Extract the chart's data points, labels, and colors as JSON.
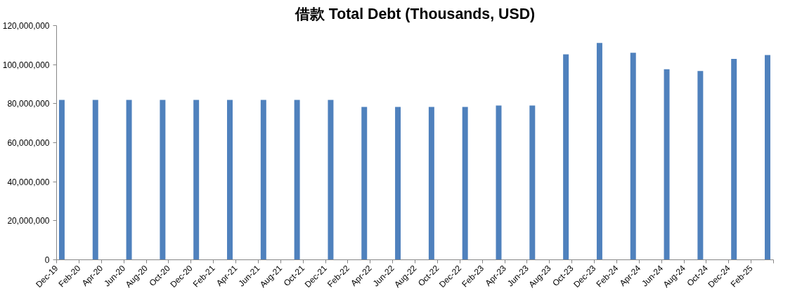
{
  "chart_data": {
    "type": "bar",
    "title": "借款 Total Debt (Thousands, USD)",
    "x": [
      "2019-12-15",
      "2020-03-15",
      "2020-06-15",
      "2020-09-15",
      "2020-12-15",
      "2021-03-15",
      "2021-06-15",
      "2021-09-15",
      "2021-12-15",
      "2022-03-15",
      "2022-06-15",
      "2022-09-15",
      "2022-12-15",
      "2023-03-15",
      "2023-06-15",
      "2023-09-15",
      "2023-12-15",
      "2024-03-15",
      "2024-06-15",
      "2024-09-15",
      "2024-12-15",
      "2025-03-15"
    ],
    "series": [
      {
        "color": "#4f81bd",
        "values": [
          81900000,
          81900000,
          81900000,
          81900000,
          81900000,
          81900000,
          81900000,
          81900000,
          81900000,
          78300000,
          78300000,
          78300000,
          78300000,
          79000000,
          79000000,
          105300000,
          111100000,
          106100000,
          97600000,
          96700000,
          102900000,
          104900000
        ]
      }
    ],
    "xlim": [
      "2019-12",
      "2025-04"
    ],
    "xticks": [
      {
        "value": "2019-12",
        "label": "Dec-19"
      },
      {
        "value": "2020-02",
        "label": "Feb-20"
      },
      {
        "value": "2020-04",
        "label": "Apr-20"
      },
      {
        "value": "2020-06",
        "label": "Jun-20"
      },
      {
        "value": "2020-08",
        "label": "Aug-20"
      },
      {
        "value": "2020-10",
        "label": "Oct-20"
      },
      {
        "value": "2020-12",
        "label": "Dec-20"
      },
      {
        "value": "2021-02",
        "label": "Feb-21"
      },
      {
        "value": "2021-04",
        "label": "Apr-21"
      },
      {
        "value": "2021-06",
        "label": "Jun-21"
      },
      {
        "value": "2021-08",
        "label": "Aug-21"
      },
      {
        "value": "2021-10",
        "label": "Oct-21"
      },
      {
        "value": "2021-12",
        "label": "Dec-21"
      },
      {
        "value": "2022-02",
        "label": "Feb-22"
      },
      {
        "value": "2022-04",
        "label": "Apr-22"
      },
      {
        "value": "2022-06",
        "label": "Jun-22"
      },
      {
        "value": "2022-08",
        "label": "Aug-22"
      },
      {
        "value": "2022-10",
        "label": "Oct-22"
      },
      {
        "value": "2022-12",
        "label": "Dec-22"
      },
      {
        "value": "2023-02",
        "label": "Feb-23"
      },
      {
        "value": "2023-04",
        "label": "Apr-23"
      },
      {
        "value": "2023-06",
        "label": "Jun-23"
      },
      {
        "value": "2023-08",
        "label": "Aug-23"
      },
      {
        "value": "2023-10",
        "label": "Oct-23"
      },
      {
        "value": "2023-12",
        "label": "Dec-23"
      },
      {
        "value": "2024-02",
        "label": "Feb-24"
      },
      {
        "value": "2024-04",
        "label": "Apr-24"
      },
      {
        "value": "2024-06",
        "label": "Jun-24"
      },
      {
        "value": "2024-08",
        "label": "Aug-24"
      },
      {
        "value": "2024-10",
        "label": "Oct-24"
      },
      {
        "value": "2024-12",
        "label": "Dec-24"
      },
      {
        "value": "2025-02",
        "label": "Feb-25"
      },
      {
        "value": "2025-04",
        "label": null
      }
    ],
    "ylim": [
      0,
      120000000
    ],
    "yticks": [
      {
        "value": 0,
        "label": "0"
      },
      {
        "value": 20000000,
        "label": "20,000,000"
      },
      {
        "value": 40000000,
        "label": "40,000,000"
      },
      {
        "value": 60000000,
        "label": "60,000,000"
      },
      {
        "value": 80000000,
        "label": "80,000,000"
      },
      {
        "value": 100000000,
        "label": "100,000,000"
      },
      {
        "value": 120000000,
        "label": "120,000,000"
      }
    ],
    "grid": false
  }
}
